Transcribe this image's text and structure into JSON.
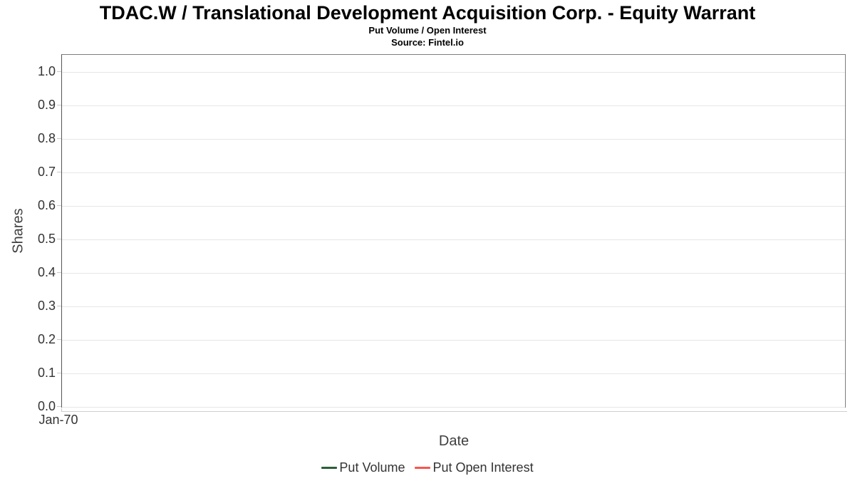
{
  "chart_data": {
    "type": "line",
    "title": "TDAC.W / Translational Development Acquisition Corp. - Equity Warrant",
    "subtitle": "Put Volume / Open Interest",
    "source": "Source: Fintel.io",
    "xlabel": "Date",
    "ylabel": "Shares",
    "x_ticks": [
      "Jan-70"
    ],
    "y_ticks": [
      "0.0",
      "0.1",
      "0.2",
      "0.3",
      "0.4",
      "0.5",
      "0.6",
      "0.7",
      "0.8",
      "0.9",
      "1.0"
    ],
    "y_tick_values": [
      0,
      0.1,
      0.2,
      0.3,
      0.4,
      0.5,
      0.6,
      0.7,
      0.8,
      0.9,
      1.0
    ],
    "ylim": [
      0,
      1.05
    ],
    "grid": "horizontal",
    "legend_position": "bottom",
    "series": [
      {
        "name": "Put Volume",
        "color": "#2c5f38",
        "values": []
      },
      {
        "name": "Put Open Interest",
        "color": "#f9564e",
        "values": []
      }
    ],
    "colors": {
      "grid": "#e6e6e6",
      "plot_border": "#7d7d7d",
      "axis_line": "#555555",
      "tick_mark": "#c9c9c9",
      "tick_text": "#333333",
      "axis_title_text": "#3f3f3f",
      "title_text": "#000000",
      "background": "#ffffff"
    }
  }
}
